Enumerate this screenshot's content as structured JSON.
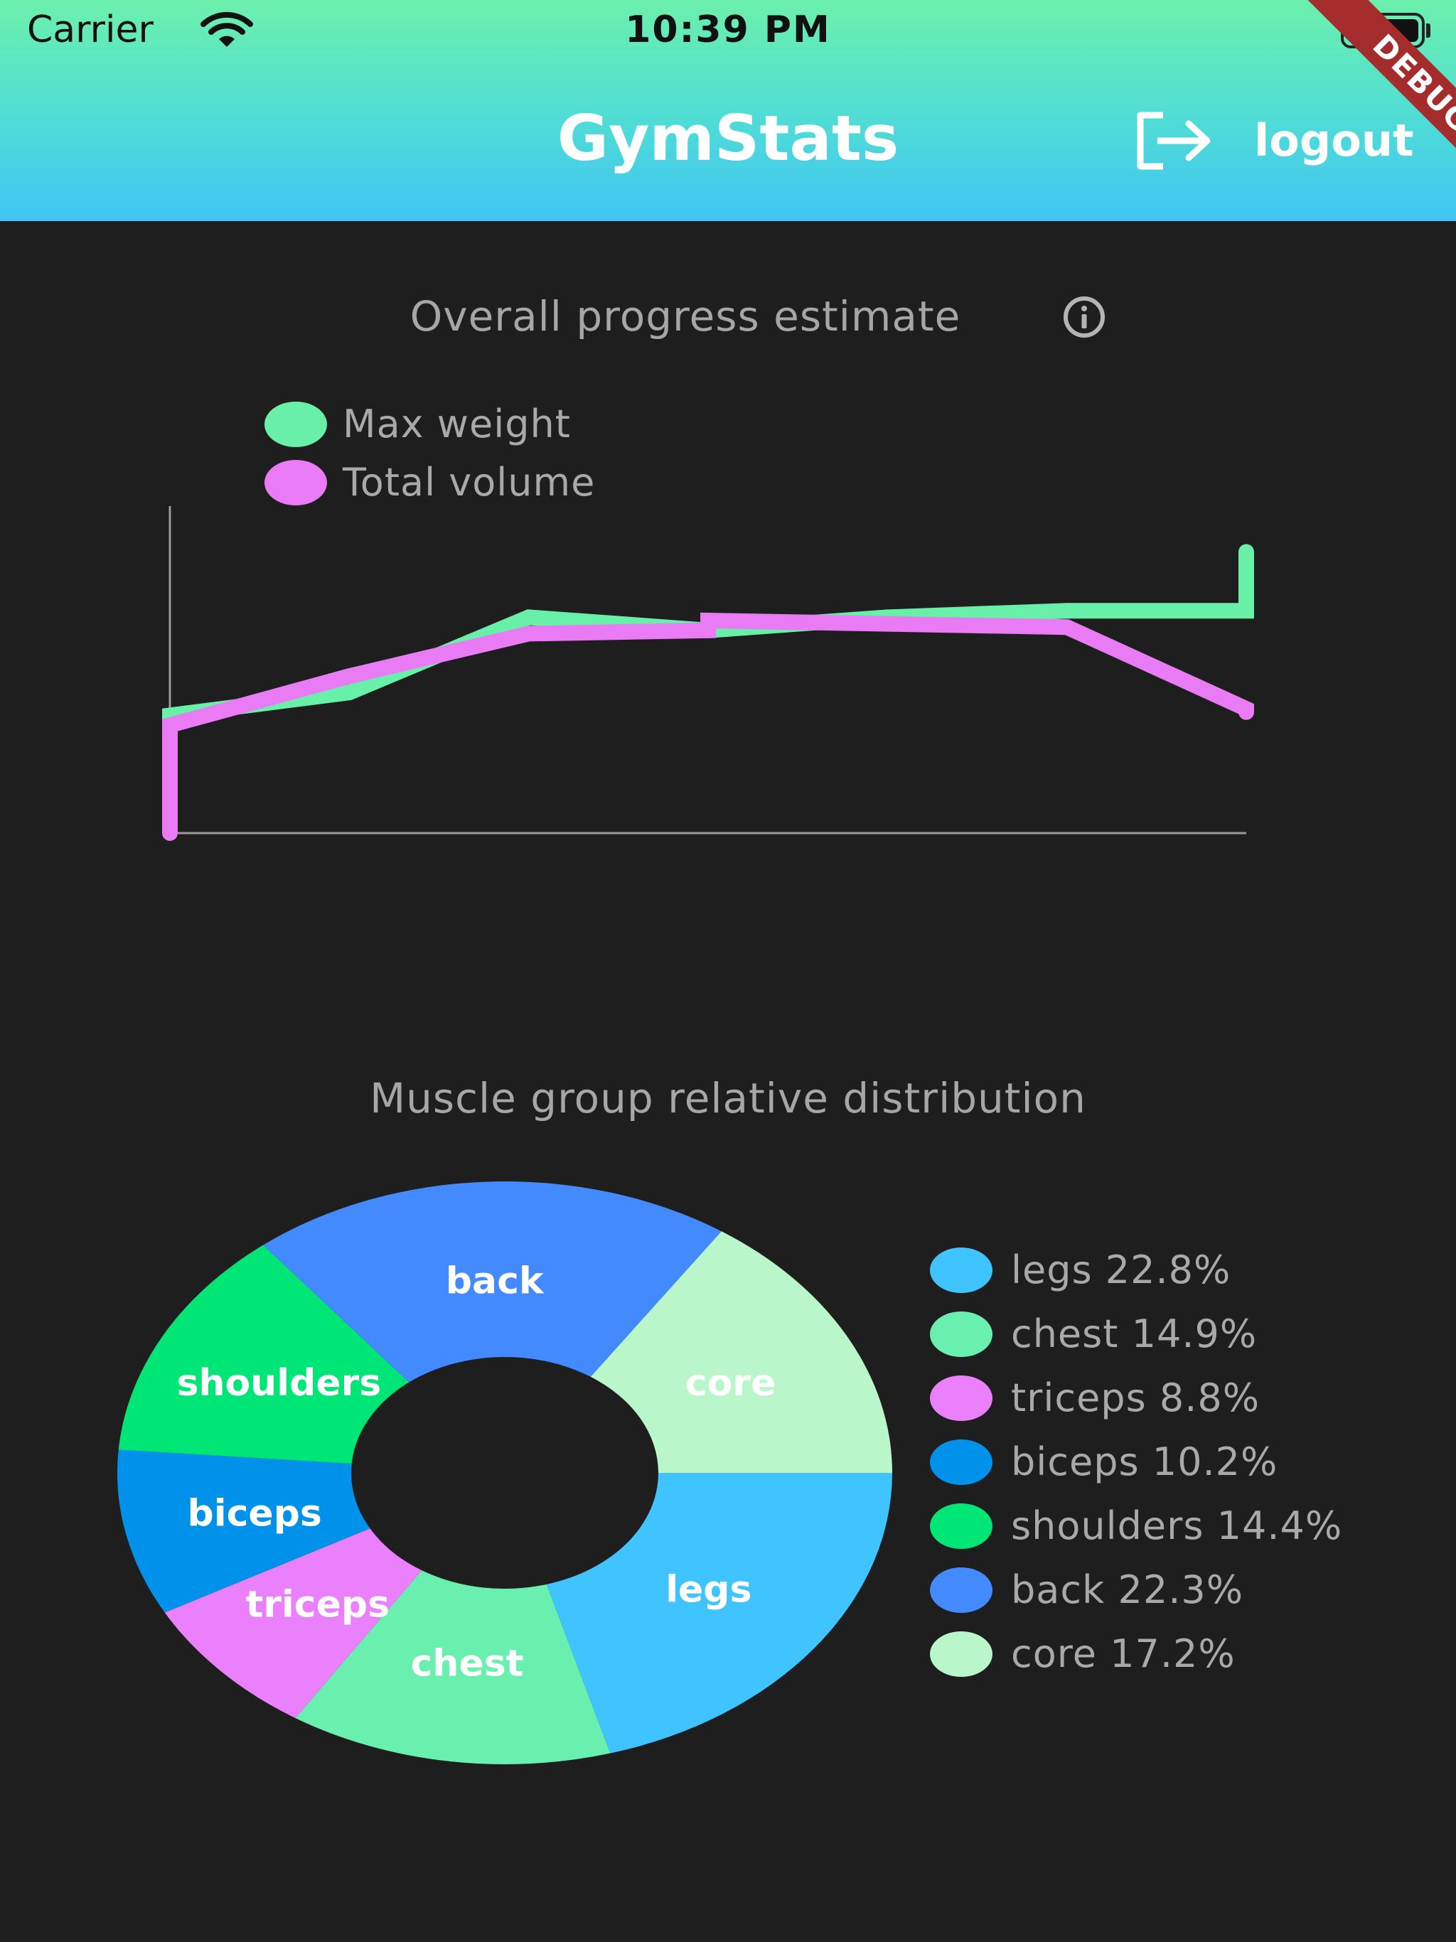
{
  "status_bar": {
    "carrier": "Carrier",
    "time": "10:39 PM"
  },
  "app_bar": {
    "title": "GymStats",
    "logout_label": "logout",
    "debug_banner": "DEBUG",
    "gradient": [
      "#6cf0ac",
      "#41c4f5"
    ]
  },
  "progress": {
    "title": "Overall progress estimate",
    "info_icon": "info-icon",
    "chart_data": {
      "type": "line",
      "title": "Overall progress estimate",
      "series": [
        {
          "name": "Max weight",
          "color": "#68f0a8",
          "x": [
            0,
            0,
            1,
            2,
            3,
            4,
            5,
            6,
            6
          ],
          "y": [
            2.0,
            3.6,
            4.3,
            6.6,
            6.2,
            6.6,
            6.8,
            6.8,
            8.6
          ]
        },
        {
          "name": "Total volume",
          "color": "#e97cf4",
          "x": [
            0,
            0,
            1,
            2,
            3,
            3,
            4,
            5,
            6,
            6
          ],
          "y": [
            0.0,
            3.3,
            4.8,
            6.1,
            6.2,
            6.5,
            6.4,
            6.3,
            3.8,
            3.7
          ]
        }
      ],
      "xlim": [
        0,
        6
      ],
      "ylim": [
        0,
        10
      ],
      "legend": "top-left",
      "grid": false
    }
  },
  "distribution": {
    "title": "Muscle group relative distribution",
    "chart_data": {
      "type": "pie",
      "donut": true,
      "slices": [
        {
          "label": "legs",
          "value": 22.8,
          "color": "#40c4ff",
          "legend": "legs 22.8%"
        },
        {
          "label": "chest",
          "value": 14.9,
          "color": "#69f0ae",
          "legend": "chest 14.9%"
        },
        {
          "label": "triceps",
          "value": 8.8,
          "color": "#ea80fc",
          "legend": "triceps 8.8%"
        },
        {
          "label": "biceps",
          "value": 10.2,
          "color": "#0091ea",
          "legend": "biceps 10.2%"
        },
        {
          "label": "shoulders",
          "value": 14.4,
          "color": "#00e676",
          "legend": "shoulders 14.4%"
        },
        {
          "label": "back",
          "value": 22.3,
          "color": "#448aff",
          "legend": "back 22.3%"
        },
        {
          "label": "core",
          "value": 17.2,
          "color": "#b9f6ca",
          "legend": "core 17.2%"
        }
      ],
      "legend": "right"
    }
  }
}
